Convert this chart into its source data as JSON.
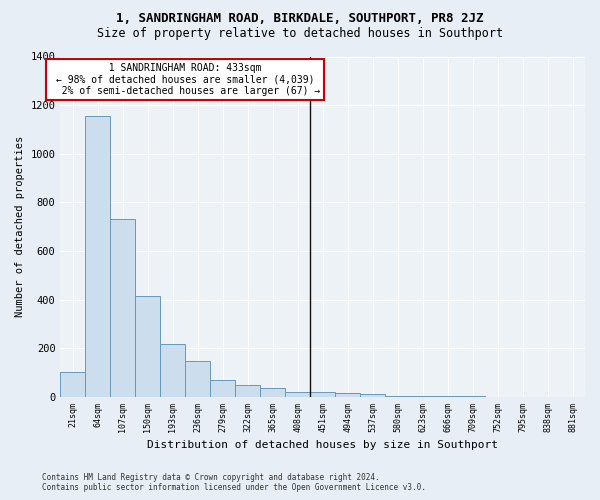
{
  "title1": "1, SANDRINGHAM ROAD, BIRKDALE, SOUTHPORT, PR8 2JZ",
  "title2": "Size of property relative to detached houses in Southport",
  "xlabel": "Distribution of detached houses by size in Southport",
  "ylabel": "Number of detached properties",
  "footer": "Contains HM Land Registry data © Crown copyright and database right 2024.\nContains public sector information licensed under the Open Government Licence v3.0.",
  "categories": [
    "21sqm",
    "64sqm",
    "107sqm",
    "150sqm",
    "193sqm",
    "236sqm",
    "279sqm",
    "322sqm",
    "365sqm",
    "408sqm",
    "451sqm",
    "494sqm",
    "537sqm",
    "580sqm",
    "623sqm",
    "666sqm",
    "709sqm",
    "752sqm",
    "795sqm",
    "838sqm",
    "881sqm"
  ],
  "values": [
    100,
    1155,
    730,
    415,
    218,
    148,
    70,
    47,
    35,
    20,
    18,
    15,
    10,
    5,
    3,
    2,
    2,
    1,
    1,
    0,
    0
  ],
  "bar_color": "#ccdded",
  "bar_edge_color": "#6699bb",
  "annotation_text": "  1 SANDRINGHAM ROAD: 433sqm  \n← 98% of detached houses are smaller (4,039)\n  2% of semi-detached houses are larger (67) →",
  "annotation_box_color": "#ffffff",
  "annotation_box_edge": "#cc0000",
  "marker_line_color": "#111111",
  "ylim": [
    0,
    1400
  ],
  "yticks": [
    0,
    200,
    400,
    600,
    800,
    1000,
    1200,
    1400
  ],
  "bg_color": "#e8eef5",
  "plot_bg_color": "#edf2f7",
  "grid_color": "#ffffff",
  "title_fontsize": 9,
  "subtitle_fontsize": 8.5
}
